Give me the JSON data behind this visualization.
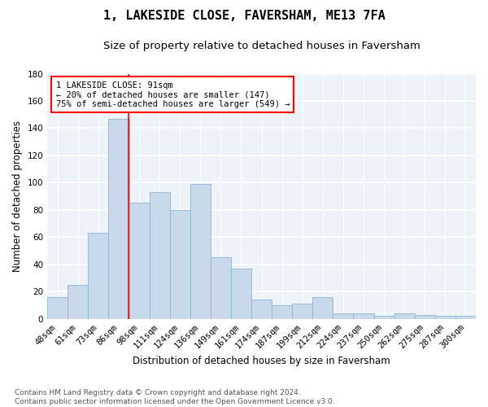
{
  "title": "1, LAKESIDE CLOSE, FAVERSHAM, ME13 7FA",
  "subtitle": "Size of property relative to detached houses in Faversham",
  "xlabel": "Distribution of detached houses by size in Faversham",
  "ylabel": "Number of detached properties",
  "categories": [
    "48sqm",
    "61sqm",
    "73sqm",
    "86sqm",
    "98sqm",
    "111sqm",
    "124sqm",
    "136sqm",
    "149sqm",
    "161sqm",
    "174sqm",
    "187sqm",
    "199sqm",
    "212sqm",
    "224sqm",
    "237sqm",
    "250sqm",
    "262sqm",
    "275sqm",
    "287sqm",
    "300sqm"
  ],
  "values": [
    16,
    25,
    63,
    147,
    85,
    93,
    80,
    99,
    45,
    37,
    14,
    10,
    11,
    16,
    4,
    4,
    2,
    4,
    3,
    2,
    2
  ],
  "bar_color": "#c9d9ec",
  "bar_edge_color": "#8ab4d4",
  "annotation_text": "1 LAKESIDE CLOSE: 91sqm\n← 20% of detached houses are smaller (147)\n75% of semi-detached houses are larger (549) →",
  "annotation_box_color": "white",
  "annotation_box_edge": "red",
  "vline_color": "red",
  "vline_x": 3.46,
  "ylim": [
    0,
    180
  ],
  "yticks": [
    0,
    20,
    40,
    60,
    80,
    100,
    120,
    140,
    160,
    180
  ],
  "footnote": "Contains HM Land Registry data © Crown copyright and database right 2024.\nContains public sector information licensed under the Open Government Licence v3.0.",
  "background_color": "#eef2f9",
  "grid_color": "white",
  "title_fontsize": 11,
  "subtitle_fontsize": 9.5,
  "xlabel_fontsize": 8.5,
  "ylabel_fontsize": 8.5,
  "tick_fontsize": 7.5,
  "annotation_fontsize": 7.5,
  "footnote_fontsize": 6.5
}
